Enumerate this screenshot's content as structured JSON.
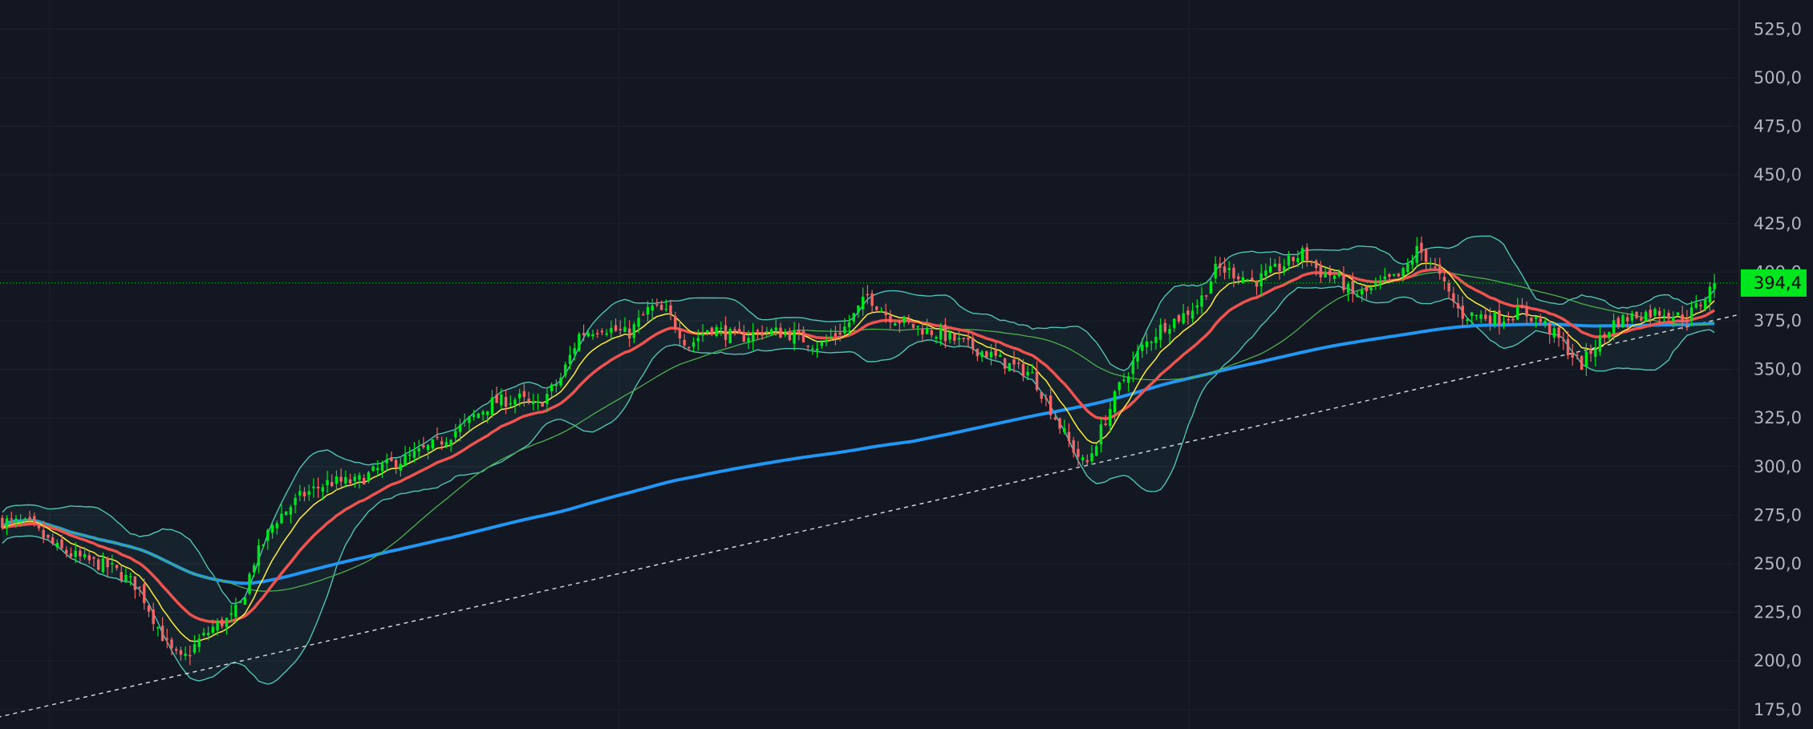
{
  "chart_data": {
    "type": "candlestick",
    "y_axis": {
      "min": 165,
      "max": 540,
      "ticks": [
        175,
        200,
        225,
        250,
        275,
        300,
        325,
        350,
        375,
        400,
        425,
        450,
        475,
        500,
        525
      ],
      "tick_labels": [
        "175,0",
        "200,0",
        "225,0",
        "250,0",
        "275,0",
        "300,0",
        "325,0",
        "350,0",
        "375,0",
        "400,0",
        "425,0",
        "450,0",
        "475,0",
        "500,0",
        "525,0"
      ]
    },
    "grid": true,
    "last_price": 394.4,
    "last_price_label": "394,4",
    "bar_count": 375,
    "close_anchors": [
      [
        0,
        272
      ],
      [
        10,
        270
      ],
      [
        20,
        258
      ],
      [
        30,
        252
      ],
      [
        40,
        248
      ],
      [
        50,
        238
      ],
      [
        58,
        215
      ],
      [
        62,
        205
      ],
      [
        66,
        200
      ],
      [
        72,
        210
      ],
      [
        78,
        218
      ],
      [
        84,
        222
      ],
      [
        88,
        230
      ],
      [
        92,
        250
      ],
      [
        100,
        272
      ],
      [
        110,
        285
      ],
      [
        120,
        292
      ],
      [
        130,
        292
      ],
      [
        140,
        300
      ],
      [
        150,
        305
      ],
      [
        160,
        312
      ],
      [
        170,
        322
      ],
      [
        180,
        333
      ],
      [
        190,
        335
      ],
      [
        196,
        330
      ],
      [
        205,
        345
      ],
      [
        212,
        368
      ],
      [
        220,
        372
      ],
      [
        230,
        368
      ],
      [
        238,
        382
      ],
      [
        245,
        378
      ],
      [
        252,
        362
      ],
      [
        260,
        372
      ],
      [
        270,
        366
      ],
      [
        280,
        370
      ],
      [
        290,
        368
      ],
      [
        300,
        362
      ],
      [
        310,
        372
      ],
      [
        318,
        388
      ],
      [
        325,
        378
      ],
      [
        335,
        372
      ],
      [
        345,
        368
      ],
      [
        355,
        362
      ],
      [
        362,
        358
      ],
      [
        370,
        352
      ],
      [
        378,
        348
      ],
      [
        385,
        330
      ],
      [
        392,
        312
      ],
      [
        398,
        300
      ],
      [
        404,
        320
      ],
      [
        410,
        340
      ],
      [
        418,
        360
      ],
      [
        426,
        372
      ],
      [
        434,
        378
      ],
      [
        440,
        385
      ],
      [
        446,
        402
      ],
      [
        452,
        400
      ],
      [
        460,
        395
      ],
      [
        470,
        403
      ],
      [
        478,
        410
      ],
      [
        484,
        400
      ],
      [
        490,
        398
      ],
      [
        496,
        388
      ],
      [
        502,
        390
      ],
      [
        508,
        395
      ],
      [
        514,
        398
      ],
      [
        520,
        412
      ],
      [
        525,
        405
      ],
      [
        530,
        392
      ],
      [
        536,
        378
      ],
      [
        542,
        378
      ],
      [
        550,
        376
      ],
      [
        558,
        380
      ],
      [
        566,
        374
      ],
      [
        574,
        362
      ],
      [
        580,
        352
      ],
      [
        585,
        362
      ],
      [
        592,
        374
      ],
      [
        600,
        378
      ],
      [
        610,
        380
      ],
      [
        618,
        376
      ],
      [
        624,
        384
      ],
      [
        629,
        394.4
      ]
    ],
    "trend_line": {
      "x0": 0,
      "y0": 171,
      "x1": 629,
      "y1": 372
    },
    "indicators": [
      {
        "type": "sma",
        "period": 200,
        "color": "#2196f3",
        "width": 4
      },
      {
        "type": "sma",
        "period": 50,
        "color": "#4caf50",
        "width": 1.3
      },
      {
        "type": "ema",
        "period": 21,
        "color": "#ef5350",
        "width": 3.5
      },
      {
        "type": "ema",
        "period": 9,
        "color": "#ffeb3b",
        "width": 1.5
      },
      {
        "type": "bollinger",
        "period": 20,
        "mult": 2,
        "color": "#4fc3b4",
        "fill": "#4fc3b4"
      }
    ],
    "colors": {
      "background": "#131722",
      "grid": "#1e2230",
      "up": "#00e61e",
      "down": "#f06565",
      "trend_line": "#d1d4dc",
      "price_line": "#00e61e",
      "price_tag_bg": "#00e61e",
      "price_tag_text": "#000000",
      "axis_text": "#b2b5be"
    }
  }
}
